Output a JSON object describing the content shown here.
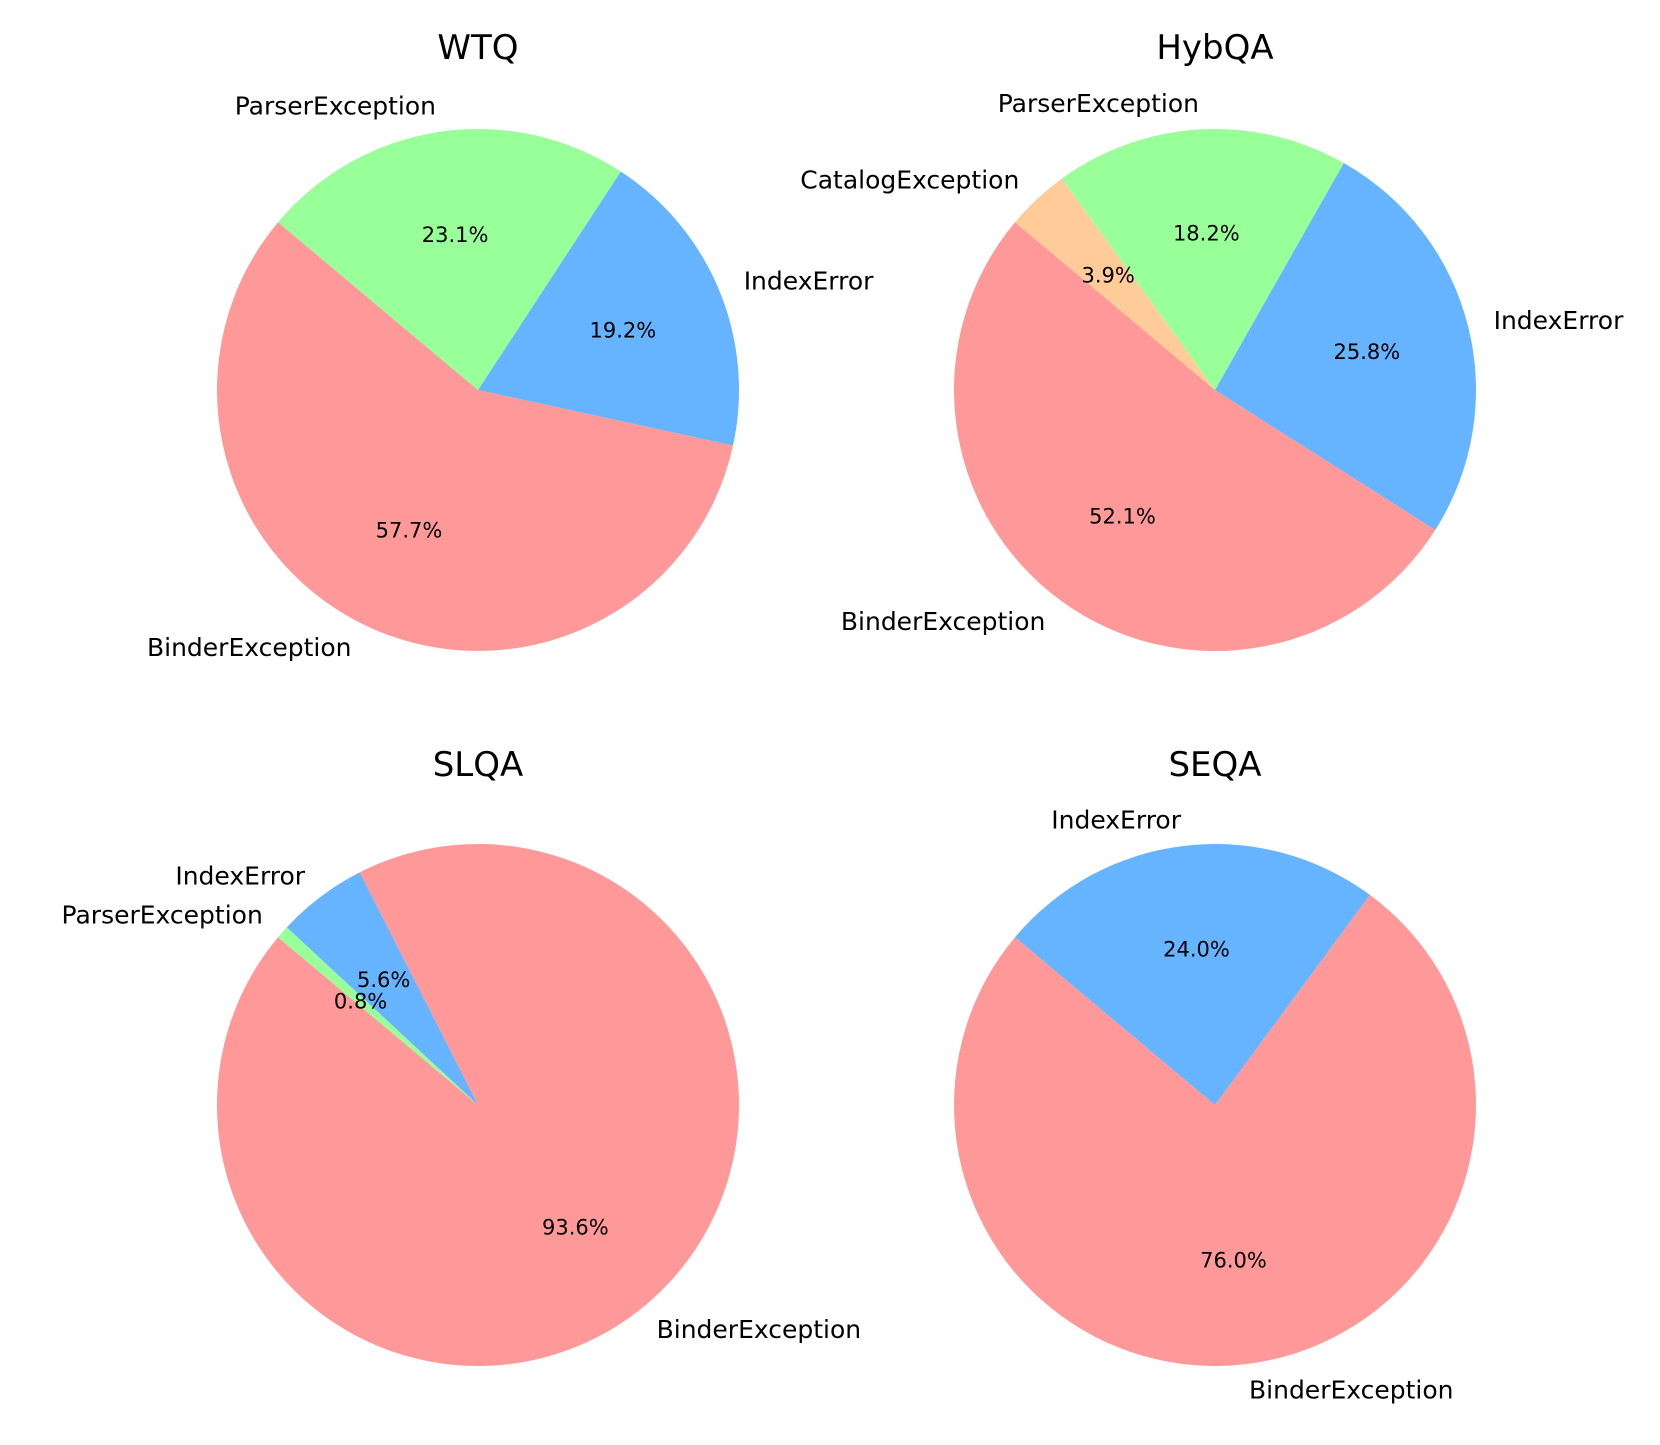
{
  "chart_data": [
    {
      "type": "pie",
      "title": "WTQ",
      "start_angle_deg": 140,
      "slices": [
        {
          "label": "BinderException",
          "value": 57.7,
          "pct_label": "57.7%",
          "color": "#ff9999"
        },
        {
          "label": "IndexError",
          "value": 19.2,
          "pct_label": "19.2%",
          "color": "#66b3ff"
        },
        {
          "label": "ParserException",
          "value": 23.1,
          "pct_label": "23.1%",
          "color": "#99ff99"
        }
      ]
    },
    {
      "type": "pie",
      "title": "HybQA",
      "start_angle_deg": 140,
      "slices": [
        {
          "label": "BinderException",
          "value": 52.1,
          "pct_label": "52.1%",
          "color": "#ff9999"
        },
        {
          "label": "IndexError",
          "value": 25.8,
          "pct_label": "25.8%",
          "color": "#66b3ff"
        },
        {
          "label": "ParserException",
          "value": 18.2,
          "pct_label": "18.2%",
          "color": "#99ff99"
        },
        {
          "label": "CatalogException",
          "value": 3.9,
          "pct_label": "3.9%",
          "color": "#ffcc99"
        }
      ]
    },
    {
      "type": "pie",
      "title": "SLQA",
      "start_angle_deg": 140,
      "slices": [
        {
          "label": "BinderException",
          "value": 93.6,
          "pct_label": "93.6%",
          "color": "#ff9999"
        },
        {
          "label": "IndexError",
          "value": 5.6,
          "pct_label": "5.6%",
          "color": "#66b3ff"
        },
        {
          "label": "ParserException",
          "value": 0.8,
          "pct_label": "0.8%",
          "color": "#99ff99"
        }
      ]
    },
    {
      "type": "pie",
      "title": "SEQA",
      "start_angle_deg": 140,
      "slices": [
        {
          "label": "BinderException",
          "value": 76.0,
          "pct_label": "76.0%",
          "color": "#ff9999"
        },
        {
          "label": "IndexError",
          "value": 24.0,
          "pct_label": "24.0%",
          "color": "#66b3ff"
        }
      ]
    }
  ]
}
